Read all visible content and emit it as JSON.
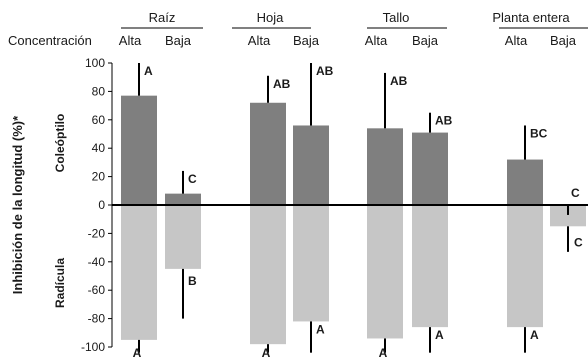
{
  "chart_data": {
    "type": "bar",
    "ylabel": "Inhibición de la longitud (%)*",
    "upper_label": "Coleóptilo",
    "lower_label": "Radícula",
    "concentration_label": "Concentración",
    "ylim": [
      -100,
      100
    ],
    "yticks": [
      100,
      80,
      60,
      40,
      20,
      0,
      -20,
      -40,
      -60,
      -80,
      -100
    ],
    "colors": {
      "coleoptilo": "#7f7f7f",
      "radicula": "#c6c6c6"
    },
    "groups": [
      {
        "name": "Raíz",
        "levels": [
          {
            "name": "Alta",
            "coleoptilo": 77,
            "coleoptilo_err": 100,
            "coleoptilo_sig": "A",
            "radicula": -95,
            "radicula_err": -104,
            "radicula_sig": "A"
          },
          {
            "name": "Baja",
            "coleoptilo": 8,
            "coleoptilo_err": 24,
            "coleoptilo_sig": "C",
            "radicula": -45,
            "radicula_err": -80,
            "radicula_sig": "B"
          }
        ]
      },
      {
        "name": "Hoja",
        "levels": [
          {
            "name": "Alta",
            "coleoptilo": 72,
            "coleoptilo_err": 91,
            "coleoptilo_sig": "AB",
            "radicula": -98,
            "radicula_err": -104,
            "radicula_sig": "A"
          },
          {
            "name": "Baja",
            "coleoptilo": 56,
            "coleoptilo_err": 100,
            "coleoptilo_sig": "AB",
            "radicula": -82,
            "radicula_err": -104,
            "radicula_sig": "A"
          }
        ]
      },
      {
        "name": "Tallo",
        "levels": [
          {
            "name": "Alta",
            "coleoptilo": 54,
            "coleoptilo_err": 93,
            "coleoptilo_sig": "AB",
            "radicula": -94,
            "radicula_err": -104,
            "radicula_sig": "A"
          },
          {
            "name": "Baja",
            "coleoptilo": 51,
            "coleoptilo_err": 65,
            "coleoptilo_sig": "AB",
            "radicula": -86,
            "radicula_err": -104,
            "radicula_sig": "A"
          }
        ]
      },
      {
        "name": "Planta entera",
        "levels": [
          {
            "name": "Alta",
            "coleoptilo": 32,
            "coleoptilo_err": 56,
            "coleoptilo_sig": "BC",
            "radicula": -86,
            "radicula_err": -104,
            "radicula_sig": "A"
          },
          {
            "name": "Baja",
            "coleoptilo": 0,
            "coleoptilo_err": -7,
            "coleoptilo_sig": "C",
            "radicula": -15,
            "radicula_err": -33,
            "radicula_sig": "C"
          }
        ]
      }
    ]
  }
}
